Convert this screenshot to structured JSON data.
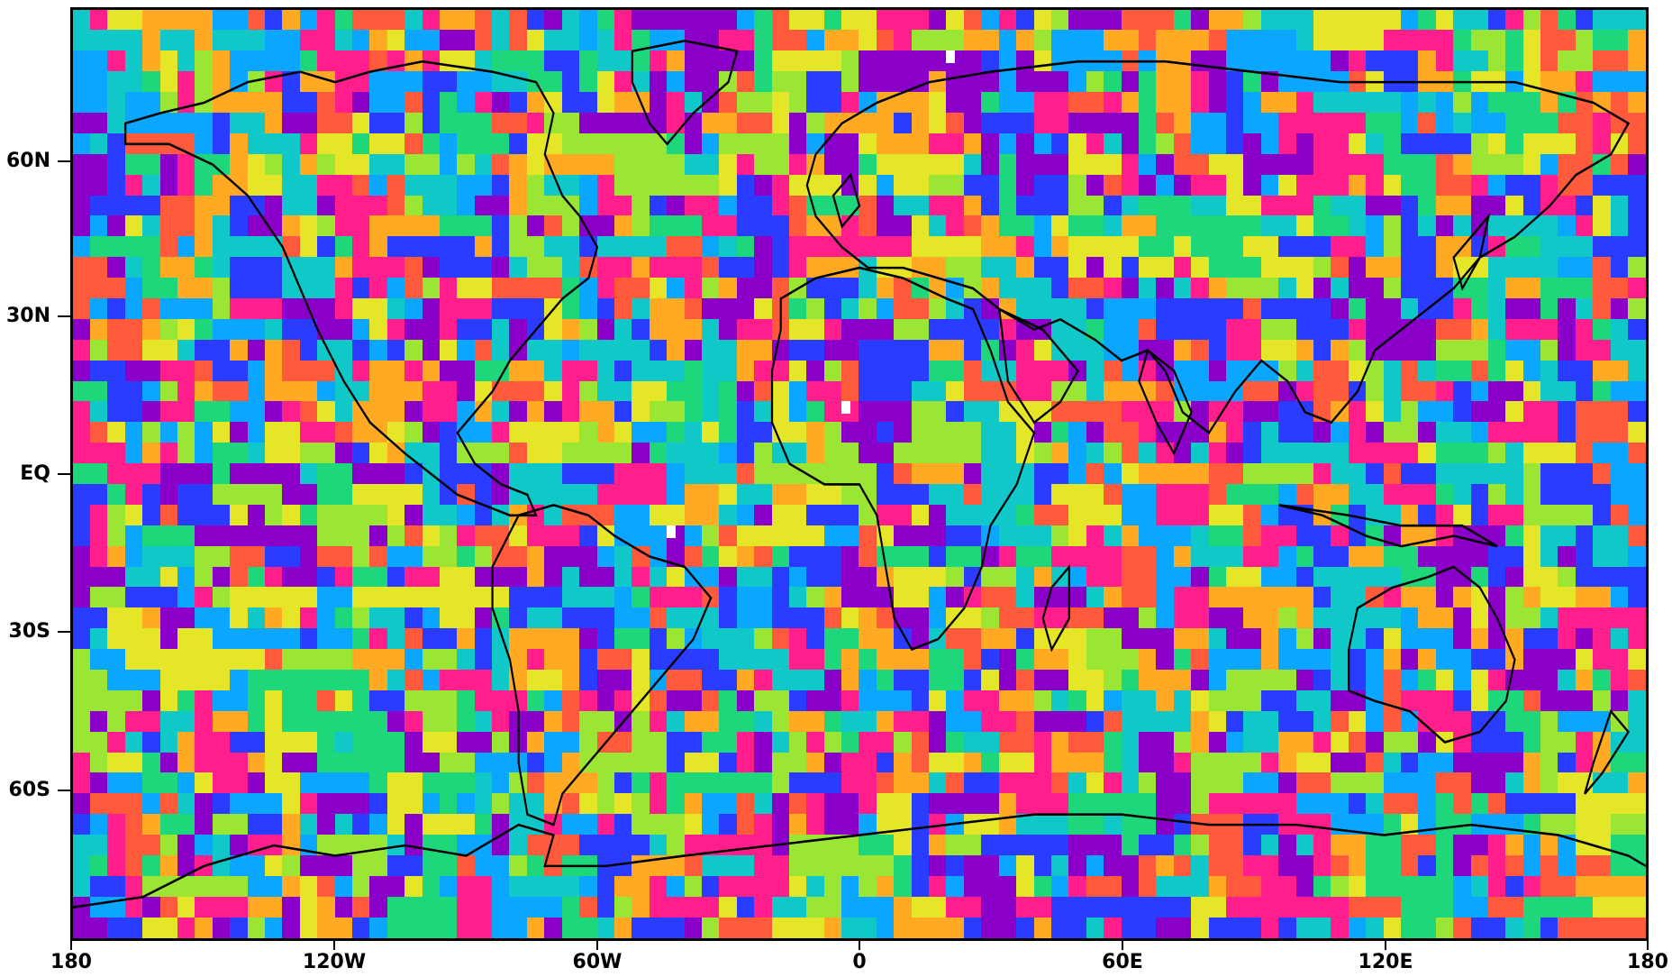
{
  "map": {
    "projection": "equirectangular",
    "lon_range": [
      -180,
      180
    ],
    "lat_range": [
      -90,
      90
    ],
    "grid_resolution_deg": 4,
    "field": "random categorical field",
    "colors": [
      "#8a00c8",
      "#2a3cff",
      "#0aa6ff",
      "#10c8c8",
      "#1ed77a",
      "#9be635",
      "#e6e628",
      "#ffaa22",
      "#ff5a3c",
      "#ff1e8c"
    ],
    "missing_color": "#ffffff",
    "coastline_color": "#000000"
  },
  "axes": {
    "x_ticks": [
      {
        "lon": -180,
        "label": "180"
      },
      {
        "lon": -120,
        "label": "120W"
      },
      {
        "lon": -60,
        "label": "60W"
      },
      {
        "lon": 0,
        "label": "0"
      },
      {
        "lon": 60,
        "label": "60E"
      },
      {
        "lon": 120,
        "label": "120E"
      },
      {
        "lon": 180,
        "label": "180"
      }
    ],
    "y_ticks": [
      {
        "lat": 60,
        "label": "60N"
      },
      {
        "lat": 30,
        "label": "30N"
      },
      {
        "lat": 0,
        "label": "EQ"
      },
      {
        "lat": -30,
        "label": "30S"
      },
      {
        "lat": -60,
        "label": "60S"
      }
    ]
  }
}
